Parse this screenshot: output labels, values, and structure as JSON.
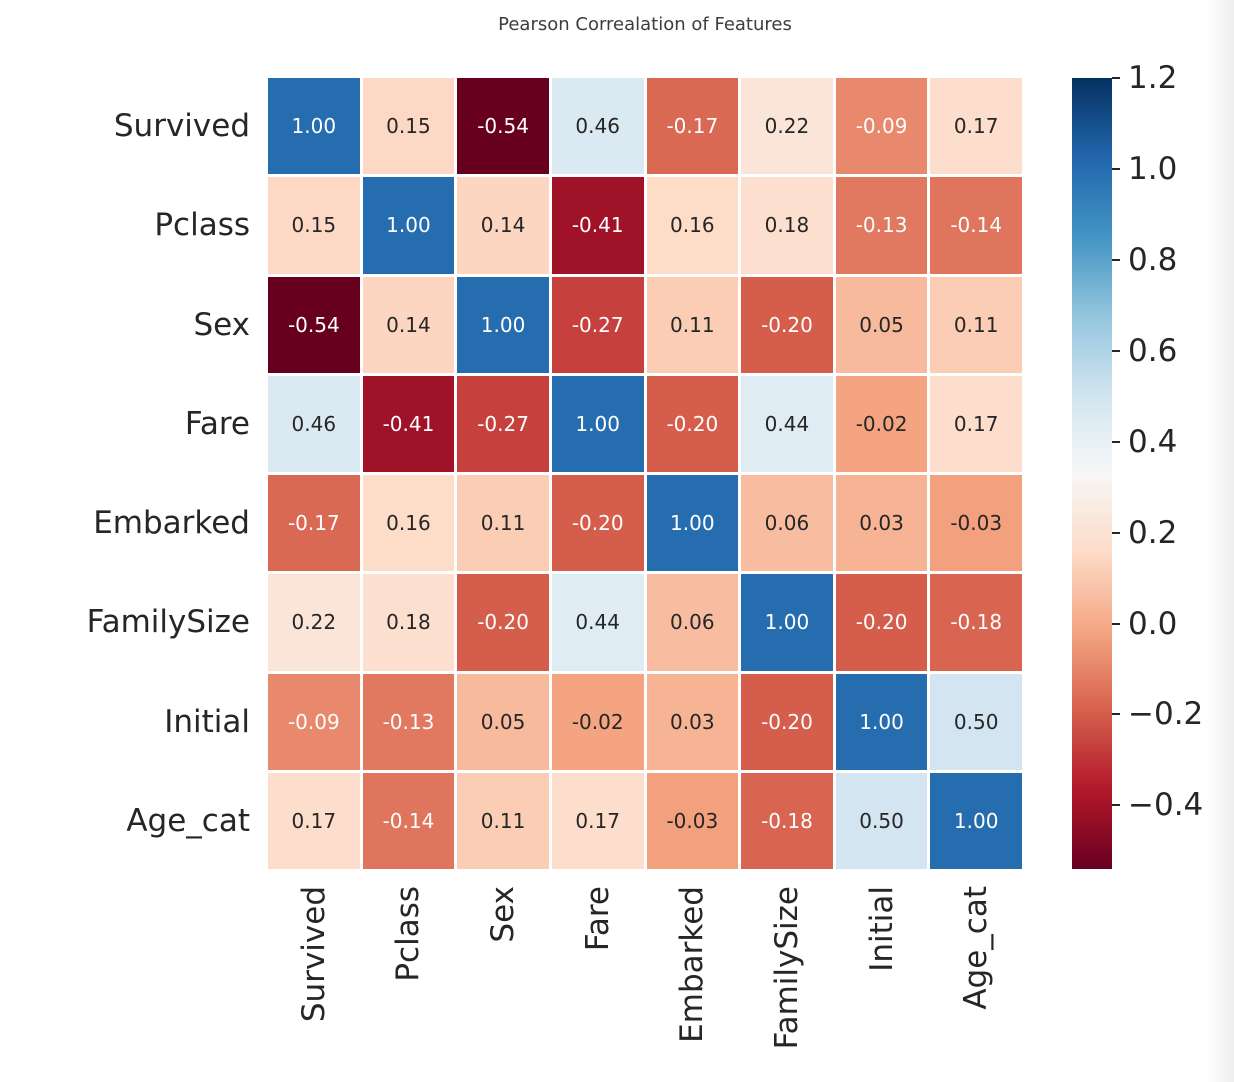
{
  "figure": {
    "background": "#ffffff",
    "axis_label_color": "#262626",
    "title_color": "#3d3d3d",
    "annotation_dark_color": "#262626",
    "annotation_light_color": "#ffffff",
    "grid_line_color": "#ffffff"
  },
  "chart_data": {
    "type": "heatmap",
    "title": "Pearson Correalation of Features",
    "categories": [
      "Survived",
      "Pclass",
      "Sex",
      "Fare",
      "Embarked",
      "FamilySize",
      "Initial",
      "Age_cat"
    ],
    "matrix": [
      [
        1.0,
        0.15,
        -0.54,
        0.46,
        -0.17,
        0.22,
        -0.09,
        0.17
      ],
      [
        0.15,
        1.0,
        0.14,
        -0.41,
        0.16,
        0.18,
        -0.13,
        -0.14
      ],
      [
        -0.54,
        0.14,
        1.0,
        -0.27,
        0.11,
        -0.2,
        0.05,
        0.11
      ],
      [
        0.46,
        -0.41,
        -0.27,
        1.0,
        -0.2,
        0.44,
        -0.02,
        0.17
      ],
      [
        -0.17,
        0.16,
        0.11,
        -0.2,
        1.0,
        0.06,
        0.03,
        -0.03
      ],
      [
        0.22,
        0.18,
        -0.2,
        0.44,
        0.06,
        1.0,
        -0.2,
        -0.18
      ],
      [
        -0.09,
        -0.13,
        0.05,
        -0.02,
        0.03,
        -0.2,
        1.0,
        0.5
      ],
      [
        0.17,
        -0.14,
        0.11,
        0.17,
        -0.03,
        -0.18,
        0.5,
        1.0
      ]
    ],
    "value_decimals": 2,
    "colormap": {
      "name": "RdBu",
      "vmin": -0.54,
      "vmax": 1.2,
      "stops": [
        "#67001f",
        "#b2182b",
        "#d6604d",
        "#f4a582",
        "#fddbc7",
        "#f7f7f7",
        "#d1e5f0",
        "#92c5de",
        "#4393c3",
        "#2166ac",
        "#053061"
      ]
    },
    "colorbar": {
      "position": "right",
      "ticks": [
        {
          "value": 1.2,
          "label": "1.2"
        },
        {
          "value": 1.0,
          "label": "1.0"
        },
        {
          "value": 0.8,
          "label": "0.8"
        },
        {
          "value": 0.6,
          "label": "0.6"
        },
        {
          "value": 0.4,
          "label": "0.4"
        },
        {
          "value": 0.2,
          "label": "0.2"
        },
        {
          "value": 0.0,
          "label": "0.0"
        },
        {
          "value": -0.2,
          "label": "−0.2"
        },
        {
          "value": -0.4,
          "label": "−0.4"
        }
      ]
    },
    "grid_on": false,
    "legend_position": "right-colorbar"
  }
}
